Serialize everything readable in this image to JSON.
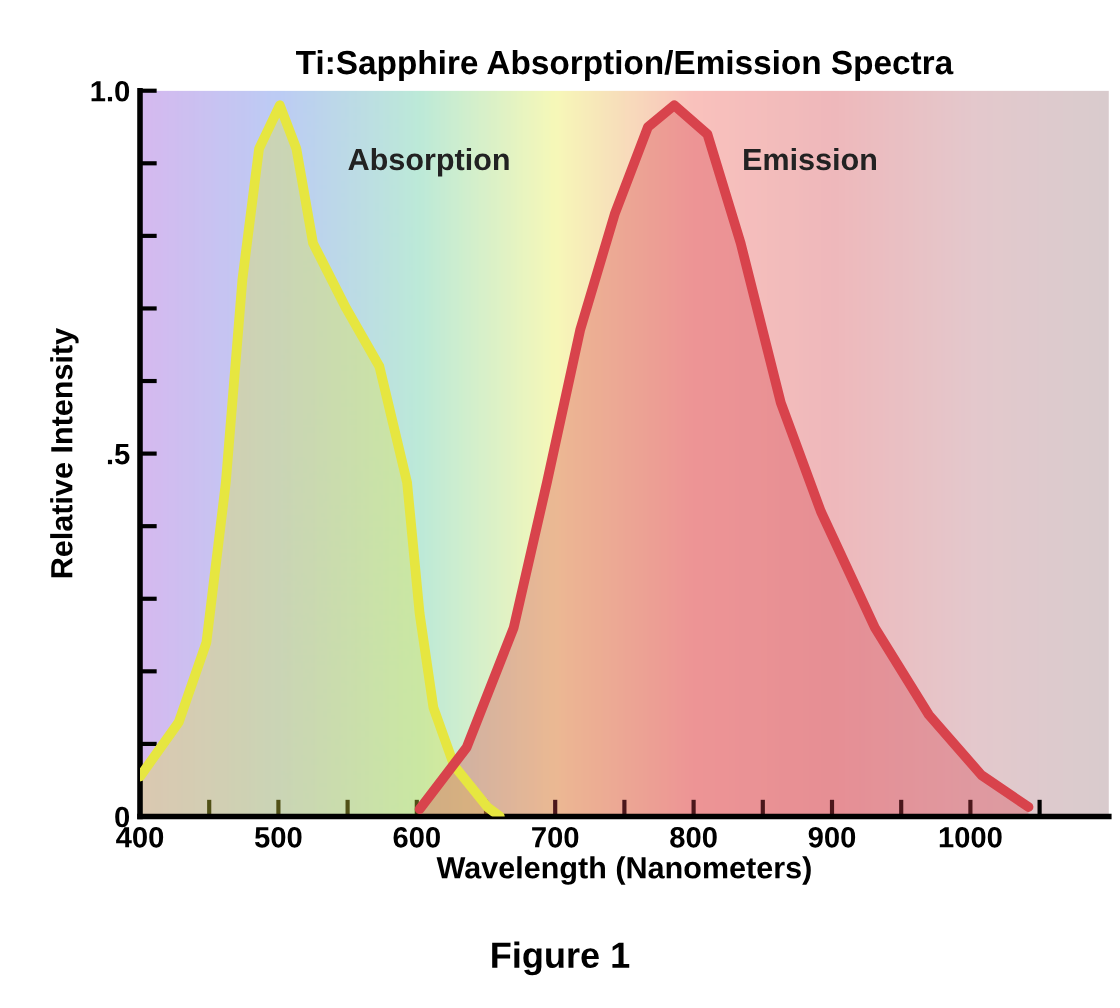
{
  "chart_data": {
    "type": "area",
    "title": "Ti:Sapphire Absorption/Emission Spectra",
    "xlabel": "Wavelength (Nanometers)",
    "ylabel": "Relative Intensity",
    "annotations": [
      "Figure 1"
    ],
    "series": [
      {
        "name": "Absorption",
        "color": "#e6e640",
        "x": [
          400,
          428,
          448,
          462,
          474,
          486,
          501,
          513,
          525,
          549,
          573,
          593,
          602,
          612,
          627,
          651,
          660
        ],
        "values": [
          0.055,
          0.13,
          0.24,
          0.46,
          0.74,
          0.92,
          0.98,
          0.92,
          0.79,
          0.7,
          0.62,
          0.46,
          0.28,
          0.15,
          0.07,
          0.013,
          0
        ]
      },
      {
        "name": "Emission",
        "color": "#d8434c",
        "x": [
          602,
          636,
          670,
          694,
          718,
          743,
          767,
          786,
          810,
          834,
          863,
          892,
          931,
          970,
          1008,
          1042
        ],
        "values": [
          0.01,
          0.095,
          0.26,
          0.46,
          0.67,
          0.83,
          0.95,
          0.98,
          0.94,
          0.79,
          0.57,
          0.42,
          0.26,
          0.14,
          0.057,
          0.013
        ]
      }
    ],
    "xlim": [
      400,
      1100
    ],
    "xticks": [
      400,
      500,
      600,
      700,
      800,
      900,
      1000,
      {
        "value": 450,
        "label": null
      },
      {
        "value": 550,
        "label": null
      },
      {
        "value": 650,
        "label": null
      },
      {
        "value": 750,
        "label": null
      },
      {
        "value": 850,
        "label": null
      },
      {
        "value": 950,
        "label": null
      },
      {
        "value": 1050,
        "label": null
      }
    ],
    "ylim": [
      0,
      1.0
    ],
    "yticks": [
      0,
      {
        "value": 0.5,
        "label": ".5"
      },
      {
        "value": 1.0,
        "label": "1.0"
      },
      {
        "value": 0.1,
        "label": null
      },
      {
        "value": 0.2,
        "label": null
      },
      {
        "value": 0.3,
        "label": null
      },
      {
        "value": 0.4,
        "label": null
      },
      {
        "value": 0.6,
        "label": null
      },
      {
        "value": 0.7,
        "label": null
      },
      {
        "value": 0.8,
        "label": null
      },
      {
        "value": 0.9,
        "label": null
      }
    ],
    "legend": false
  }
}
